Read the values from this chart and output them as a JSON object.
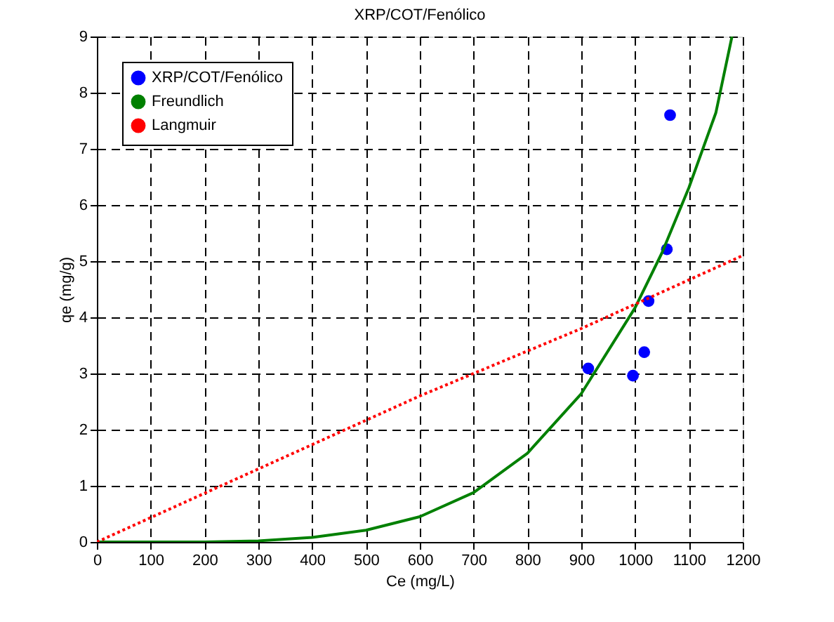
{
  "chart_data": {
    "type": "scatter",
    "title": "XRP/COT/Fenólico",
    "xlabel": "Ce (mg/L)",
    "ylabel": "qe (mg/g)",
    "xlim": [
      0,
      1200
    ],
    "ylim": [
      0,
      9
    ],
    "xticks": [
      0,
      100,
      200,
      300,
      400,
      500,
      600,
      700,
      800,
      900,
      1000,
      1100,
      1200
    ],
    "yticks": [
      0,
      1,
      2,
      3,
      4,
      5,
      6,
      7,
      8,
      9
    ],
    "grid": true,
    "legend": "top left",
    "series": [
      {
        "name": "XRP/COT/Fenólico",
        "marker": "circle",
        "color": "#0000ff",
        "x": [
          913,
          996,
          1017,
          1025,
          1059,
          1065
        ],
        "values": [
          3.09,
          2.96,
          3.38,
          4.29,
          5.21,
          7.6
        ]
      },
      {
        "name": "Freundlich",
        "type": "line",
        "line_style": "solid",
        "color": "#008000",
        "x": [
          0,
          200,
          300,
          400,
          500,
          600,
          700,
          800,
          900,
          1000,
          1050,
          1100,
          1150,
          1180
        ],
        "values": [
          0,
          0,
          0.02,
          0.08,
          0.21,
          0.45,
          0.88,
          1.58,
          2.64,
          4.17,
          5.15,
          6.31,
          7.64,
          9.0
        ]
      },
      {
        "name": "Langmuir",
        "type": "line",
        "line_style": "dotted",
        "color": "#ff0000",
        "x": [
          0,
          300,
          600,
          900,
          1200
        ],
        "values": [
          0,
          1.3,
          2.6,
          3.8,
          5.1
        ]
      }
    ]
  }
}
